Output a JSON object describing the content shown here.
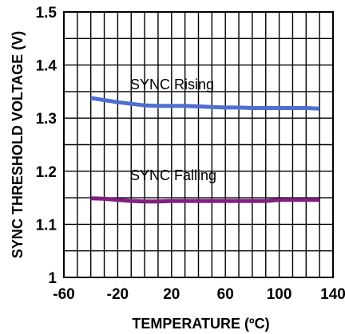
{
  "chart_data": {
    "type": "line",
    "title": "",
    "xlabel": "TEMPERATURE (ºC)",
    "ylabel": "SYNC THRESHOLD VOLTAGE (V)",
    "xlim": [
      -60,
      140
    ],
    "ylim": [
      1.0,
      1.5
    ],
    "xticks": [
      -60,
      -20,
      20,
      60,
      100,
      140
    ],
    "xtick_labels": [
      "-60",
      "-20",
      "20",
      "60",
      "100",
      "140"
    ],
    "yticks": [
      1.0,
      1.1,
      1.2,
      1.3,
      1.4,
      1.5
    ],
    "ytick_labels": [
      "1",
      "1.1",
      "1.2",
      "1.3",
      "1.4",
      "1.5"
    ],
    "grid": true,
    "grid_x_step": 10,
    "grid_y_step": 0.05,
    "series": [
      {
        "name": "SYNC Rising",
        "color": "#4f6fd0",
        "x": [
          -40,
          -30,
          -20,
          -10,
          0,
          10,
          20,
          30,
          40,
          50,
          60,
          70,
          80,
          90,
          100,
          110,
          120,
          130
        ],
        "y": [
          1.338,
          1.334,
          1.33,
          1.327,
          1.324,
          1.323,
          1.323,
          1.323,
          1.322,
          1.321,
          1.32,
          1.32,
          1.319,
          1.319,
          1.319,
          1.319,
          1.319,
          1.318
        ]
      },
      {
        "name": "SYNC Falling",
        "color": "#80207f",
        "x": [
          -40,
          -30,
          -20,
          -10,
          0,
          10,
          20,
          30,
          40,
          50,
          60,
          70,
          80,
          90,
          100,
          110,
          120,
          130
        ],
        "y": [
          1.149,
          1.148,
          1.146,
          1.144,
          1.143,
          1.143,
          1.144,
          1.144,
          1.144,
          1.144,
          1.144,
          1.144,
          1.144,
          1.144,
          1.146,
          1.146,
          1.146,
          1.146
        ]
      }
    ]
  }
}
